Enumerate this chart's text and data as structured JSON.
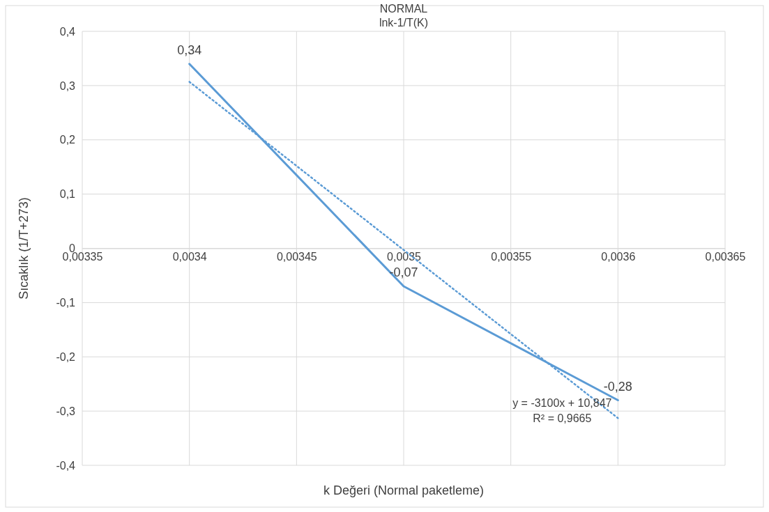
{
  "chart_data": {
    "type": "line",
    "title": "NORMAL",
    "subtitle": "lnk-1/T(K)",
    "xlabel": "k Değeri (Normal paketleme)",
    "ylabel": "Sıcaklık (1/T+273)",
    "series": [
      {
        "color": "#5b9bd5",
        "x": [
          0.0034,
          0.0035,
          0.0036
        ],
        "values": [
          0.34,
          -0.07,
          -0.28
        ],
        "value_labels": [
          "0,34",
          "-0,07",
          "-0,28"
        ],
        "line_style": "solid"
      },
      {
        "type": "line",
        "color": "#5b9bd5",
        "x": [
          0.0034,
          0.0036
        ],
        "values": [
          0.307,
          -0.313
        ],
        "line_style": "dotted"
      }
    ],
    "annotations": [
      "y = -3100x + 10,847",
      "R² = 0,9665"
    ],
    "xlim": [
      0.00335,
      0.00365
    ],
    "xticks": [
      {
        "value": 0.00335,
        "label": "0,00335"
      },
      {
        "value": 0.0034,
        "label": "0,0034"
      },
      {
        "value": 0.00345,
        "label": "0,00345"
      },
      {
        "value": 0.0035,
        "label": "0,0035"
      },
      {
        "value": 0.00355,
        "label": "0,00355"
      },
      {
        "value": 0.0036,
        "label": "0,0036"
      },
      {
        "value": 0.00365,
        "label": "0,00365"
      }
    ],
    "ylim": [
      -0.4,
      0.4
    ],
    "yticks": [
      {
        "value": -0.4,
        "label": "-0,4"
      },
      {
        "value": -0.3,
        "label": "-0,3"
      },
      {
        "value": -0.2,
        "label": "-0,2"
      },
      {
        "value": -0.1,
        "label": "-0,1"
      },
      {
        "value": 0,
        "label": "0"
      },
      {
        "value": 0.1,
        "label": "0,1"
      },
      {
        "value": 0.2,
        "label": "0,2"
      },
      {
        "value": 0.3,
        "label": "0,3"
      },
      {
        "value": 0.4,
        "label": "0,4"
      }
    ],
    "grid": true,
    "marker": "none"
  }
}
